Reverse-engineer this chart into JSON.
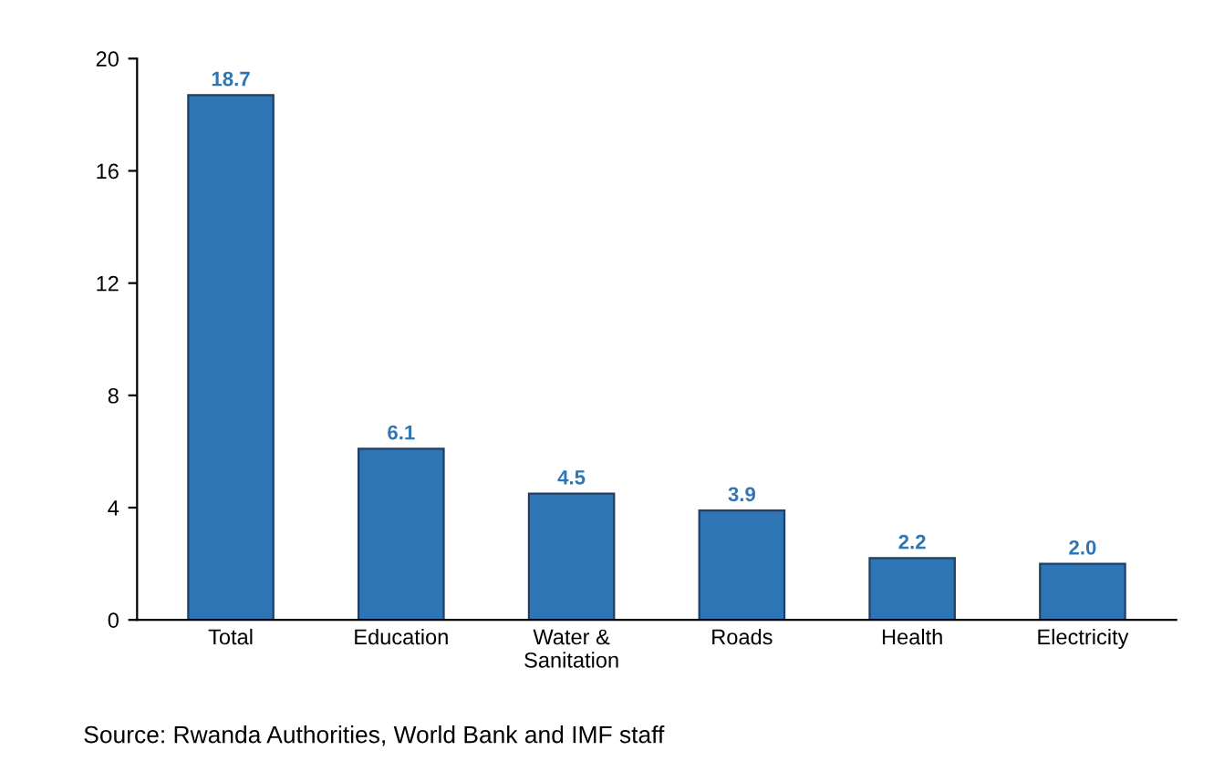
{
  "chart_data": {
    "type": "bar",
    "categories": [
      "Total",
      "Education",
      "Water &\nSanitation",
      "Roads",
      "Health",
      "Electricity"
    ],
    "values": [
      18.7,
      6.1,
      4.5,
      3.9,
      2.2,
      2.0
    ],
    "color": "#2e75b6",
    "value_labels": [
      "18.7",
      "6.1",
      "4.5",
      "3.9",
      "2.2",
      "2.0"
    ],
    "ylim": [
      0,
      20
    ],
    "yticks": [
      0,
      4,
      8,
      12,
      16,
      20
    ],
    "grid": false,
    "annotations": [
      "Source: Rwanda Authorities, World Bank and IMF staff"
    ]
  }
}
